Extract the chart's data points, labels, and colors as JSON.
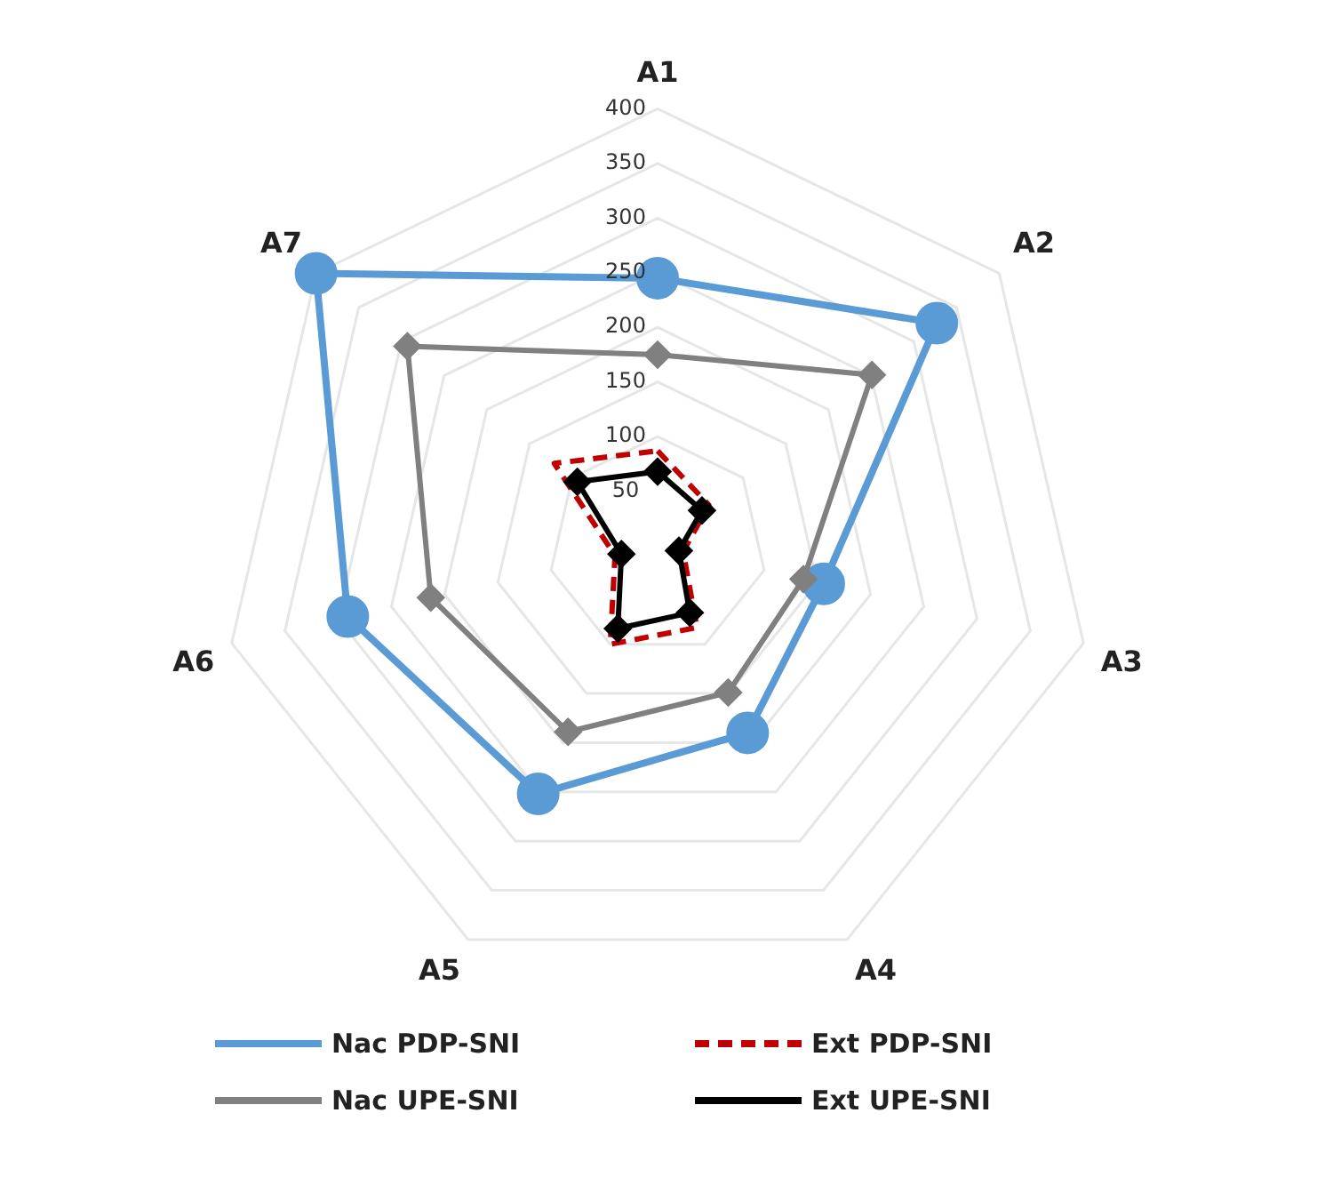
{
  "chart_data": {
    "type": "radar",
    "categories": [
      "A1",
      "A2",
      "A3",
      "A4",
      "A5",
      "A6",
      "A7"
    ],
    "ylim": [
      0,
      400
    ],
    "yticks": [
      50,
      100,
      150,
      200,
      250,
      300,
      350,
      400
    ],
    "grid": true,
    "legend": "bottom",
    "series": [
      {
        "name": "Nac PDP-SNI",
        "color": "#5b9bd5",
        "marker": "circle",
        "line_style": "solid",
        "values": [
          245,
          327,
          156,
          190,
          252,
          291,
          400
        ]
      },
      {
        "name": "Ext PDP-SNI",
        "color": "#c00000",
        "marker": "none",
        "line_style": "dashed",
        "values": [
          87,
          60,
          24,
          83,
          100,
          40,
          121
        ]
      },
      {
        "name": "Nac UPE-SNI",
        "color": "#808080",
        "marker": "diamond",
        "line_style": "solid",
        "values": [
          175,
          251,
          137,
          149,
          189,
          213,
          293
        ]
      },
      {
        "name": "Ext UPE-SNI",
        "color": "#000000",
        "marker": "diamond",
        "line_style": "solid",
        "values": [
          68,
          52,
          20,
          68,
          84,
          34,
          94
        ]
      }
    ]
  }
}
